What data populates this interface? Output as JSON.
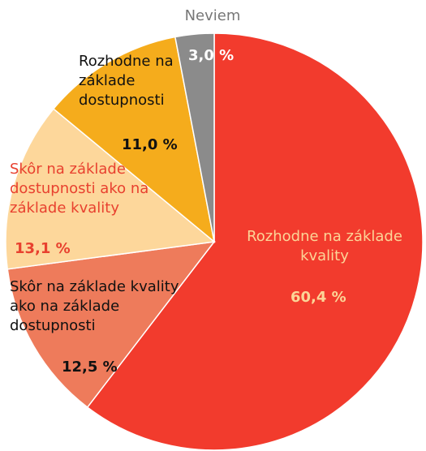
{
  "chart_data": {
    "type": "pie",
    "categories": [
      "Rozhodne na základe kvality",
      "Skôr na základe kvality ako na základe dostupnosti",
      "Skôr na základe dostupnosti ako na základe kvality",
      "Rozhodne na základe dostupnosti",
      "Neviem"
    ],
    "values": [
      60.4,
      12.5,
      13.1,
      11.0,
      3.0
    ],
    "value_labels": [
      "60,4 %",
      "12,5 %",
      "13,1 %",
      "11,0 %",
      "3,0 %"
    ],
    "colors": [
      "#f23b2d",
      "#ee7b5b",
      "#fdd79b",
      "#f5ac1c",
      "#8b8b8b"
    ]
  }
}
